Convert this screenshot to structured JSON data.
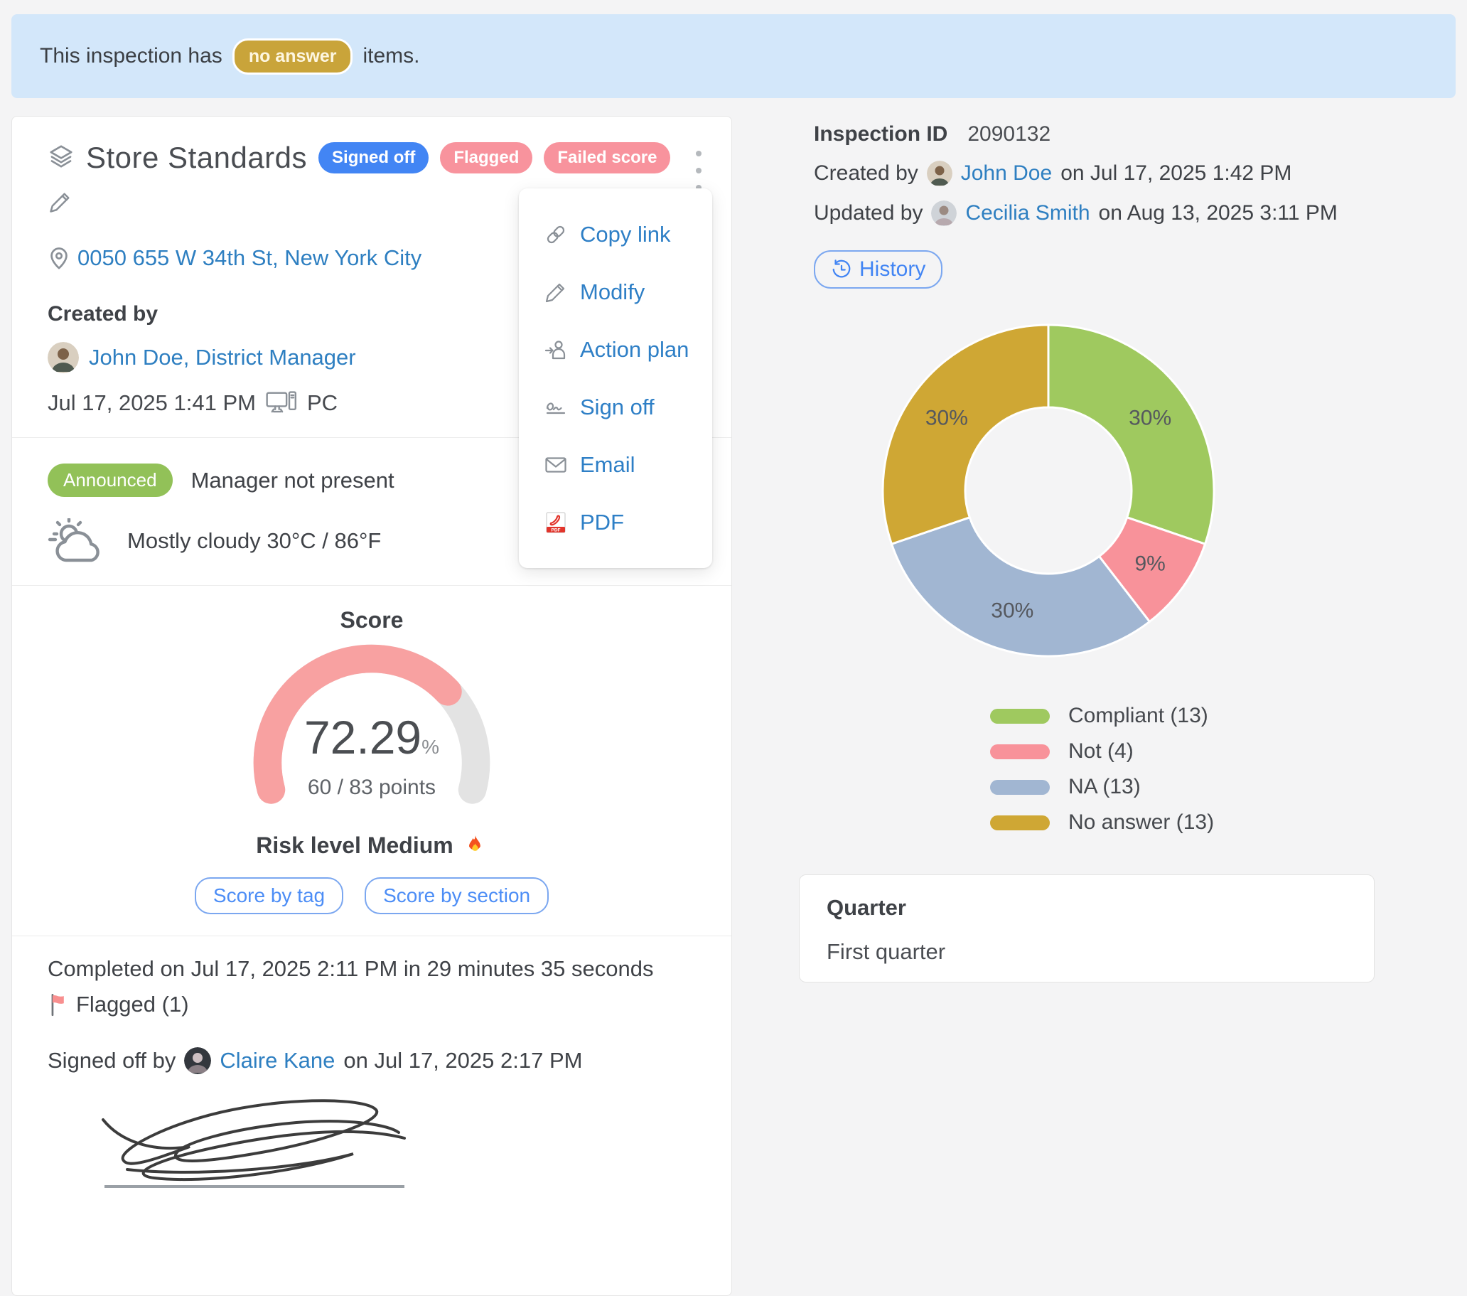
{
  "colors": {
    "link_blue": "#2e7fc1",
    "primary_blue": "#4285f4",
    "badge_pink": "#f8939d",
    "badge_gold": "#c9a43a",
    "badge_green": "#92c158",
    "gauge_fill": "#f8a1a1",
    "gauge_track": "#e3e3e3"
  },
  "banner": {
    "text_before": "This inspection has",
    "badge_label": "no answer",
    "text_after": "items."
  },
  "card": {
    "title": "Store Standards",
    "badges": [
      {
        "label": "Signed off"
      },
      {
        "label": "Flagged"
      },
      {
        "label": "Failed score"
      }
    ],
    "address": "0050 655 W 34th St, New York City",
    "created_by_label": "Created by",
    "creator_name": "John Doe, District Manager",
    "created_datetime": "Jul 17, 2025 1:41 PM",
    "device": "PC",
    "announced_badge": "Announced",
    "announced_text": "Manager not present",
    "weather_text": "Mostly cloudy 30°C / 86°F",
    "score_heading": "Score",
    "score_value": 72.29,
    "score_percent": "72.29",
    "percent_sign": "%",
    "score_points": "60 / 83 points",
    "risk_text": "Risk level Medium",
    "score_by_tag": "Score by tag",
    "score_by_section": "Score by section",
    "completed_text": "Completed on Jul 17, 2025 2:11 PM in 29 minutes 35 seconds",
    "flagged_text": "Flagged (1)",
    "signed_off_prefix": "Signed off by",
    "signed_off_name": "Claire Kane",
    "signed_off_suffix": "on Jul 17, 2025 2:17 PM"
  },
  "menu": {
    "items": [
      {
        "label": "Copy link",
        "icon": "link-icon"
      },
      {
        "label": "Modify",
        "icon": "pencil-icon"
      },
      {
        "label": "Action plan",
        "icon": "assign-user-icon"
      },
      {
        "label": "Sign off",
        "icon": "signature-icon"
      },
      {
        "label": "Email",
        "icon": "envelope-icon"
      },
      {
        "label": "PDF",
        "icon": "pdf-icon"
      }
    ]
  },
  "details": {
    "inspection_id_label": "Inspection ID",
    "inspection_id": "2090132",
    "created_prefix": "Created by",
    "created_name": "John Doe",
    "created_suffix": "on Jul 17, 2025 1:42 PM",
    "updated_prefix": "Updated by",
    "updated_name": "Cecilia Smith",
    "updated_suffix": "on Aug 13, 2025 3:11 PM",
    "history_label": "History"
  },
  "chart_data": {
    "type": "pie",
    "donut": true,
    "title": "",
    "categories": [
      "Compliant",
      "Not",
      "NA",
      "No answer"
    ],
    "values": [
      13,
      4,
      13,
      13
    ],
    "percent_labels": [
      "30%",
      "9%",
      "30%",
      "30%"
    ],
    "colors": [
      "#9fc95f",
      "#f8929a",
      "#a1b6d2",
      "#cfa734"
    ],
    "legend": [
      "Compliant (13)",
      "Not (4)",
      "NA (13)",
      "No answer (13)"
    ],
    "start_angle": "top",
    "direction": "clockwise",
    "legend_position": "bottom"
  },
  "quarter_card": {
    "label": "Quarter",
    "value": "First quarter"
  }
}
